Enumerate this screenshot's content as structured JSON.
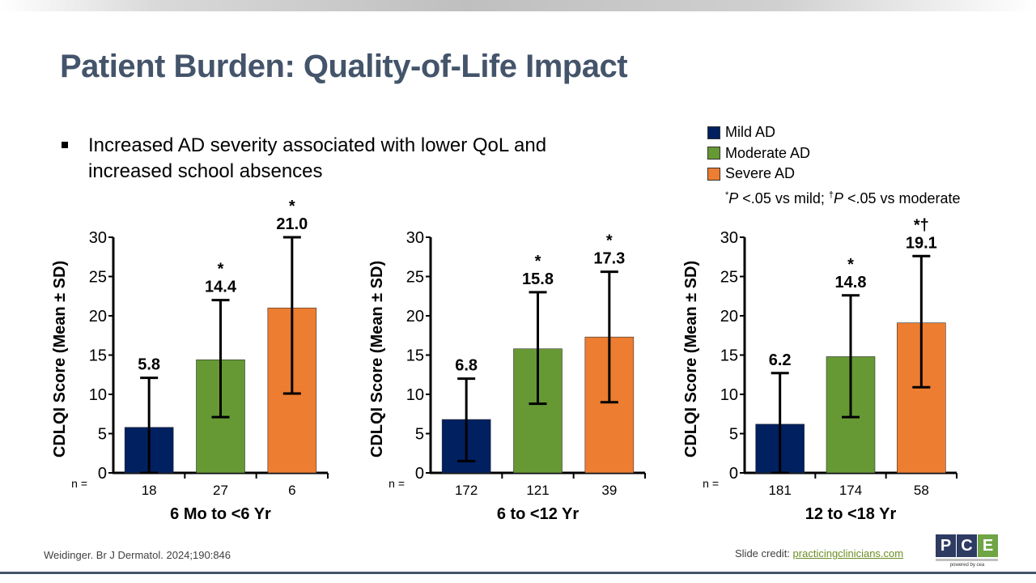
{
  "slide": {
    "title": "Patient Burden: Quality-of-Life Impact",
    "bullet": "Increased AD severity associated with lower QoL and increased school absences",
    "citation": "Weidinger. Br J Dermatol. 2024;190:846",
    "credit_label": "Slide credit: ",
    "credit_link": "practicingclinicians.com",
    "logo": {
      "letters": [
        "P",
        "C",
        "E"
      ],
      "tagline": "powered by cea"
    }
  },
  "legend": {
    "items": [
      {
        "label": "Mild AD",
        "color": "#002060"
      },
      {
        "label": "Moderate AD",
        "color": "#669933"
      },
      {
        "label": "Severe AD",
        "color": "#ed7d31"
      }
    ],
    "note_star": "*",
    "note_p1": "P",
    "note_mid": " <.05 vs mild; ",
    "note_dagger": "†",
    "note_p2": "P",
    "note_end": " <.05 vs moderate"
  },
  "chart_data": [
    {
      "type": "bar",
      "title": "6 Mo to <6 Yr",
      "xlabel": "6 Mo to <6 Yr",
      "ylabel": "CDLQI Score (Mean ± SD)",
      "ylim": [
        0,
        30
      ],
      "yticks": [
        0,
        5,
        10,
        15,
        20,
        25,
        30
      ],
      "n_label": "n =",
      "categories": [
        "Mild AD",
        "Moderate AD",
        "Severe AD"
      ],
      "n": [
        "18",
        "27",
        "6"
      ],
      "values": [
        5.8,
        14.4,
        21.0
      ],
      "value_labels": [
        "5.8",
        "14.4",
        "21.0"
      ],
      "sd": [
        6.3,
        7.6,
        10.0
      ],
      "err_low": [
        0.0,
        7.1,
        10.1
      ],
      "err_high": [
        12.1,
        22.0,
        30.0
      ],
      "markers": [
        "",
        "*",
        "*"
      ]
    },
    {
      "type": "bar",
      "title": "6 to <12 Yr",
      "xlabel": "6 to <12 Yr",
      "ylabel": "CDLQI Score (Mean ± SD)",
      "ylim": [
        0,
        30
      ],
      "yticks": [
        0,
        5,
        10,
        15,
        20,
        25,
        30
      ],
      "n_label": "n =",
      "categories": [
        "Mild AD",
        "Moderate AD",
        "Severe AD"
      ],
      "n": [
        "172",
        "121",
        "39"
      ],
      "values": [
        6.8,
        15.8,
        17.3
      ],
      "value_labels": [
        "6.8",
        "15.8",
        "17.3"
      ],
      "sd": [
        5.3,
        7.1,
        8.3
      ],
      "err_low": [
        1.5,
        8.8,
        9.0
      ],
      "err_high": [
        12.0,
        23.0,
        25.6
      ],
      "markers": [
        "",
        "*",
        "*"
      ]
    },
    {
      "type": "bar",
      "title": "12 to <18 Yr",
      "xlabel": "12 to <18 Yr",
      "ylabel": "CDLQI Score (Mean ± SD)",
      "ylim": [
        0,
        30
      ],
      "yticks": [
        0,
        5,
        10,
        15,
        20,
        25,
        30
      ],
      "n_label": "n =",
      "categories": [
        "Mild AD",
        "Moderate AD",
        "Severe AD"
      ],
      "n": [
        "181",
        "174",
        "58"
      ],
      "values": [
        6.2,
        14.8,
        19.1
      ],
      "value_labels": [
        "6.2",
        "14.8",
        "19.1"
      ],
      "sd": [
        6.5,
        7.8,
        8.3
      ],
      "err_low": [
        0.0,
        7.1,
        10.9
      ],
      "err_high": [
        12.7,
        22.6,
        27.6
      ],
      "markers": [
        "",
        "*",
        "*†"
      ]
    }
  ]
}
